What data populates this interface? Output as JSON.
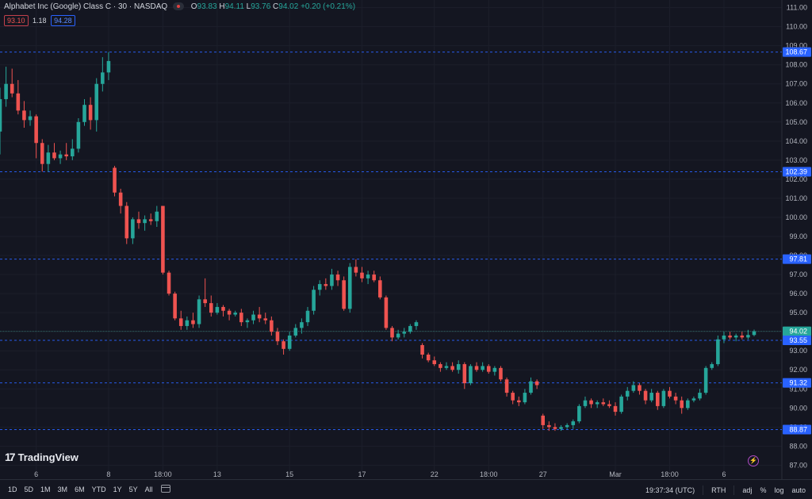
{
  "header": {
    "symbol_title": "Alphabet Inc (Google) Class C · 30 · NASDAQ",
    "ohlc": {
      "o_label": "O",
      "o_value": "93.83",
      "h_label": "H",
      "h_value": "94.11",
      "l_label": "L",
      "l_value": "93.76",
      "c_label": "C",
      "c_value": "94.02",
      "change": "+0.20 (+0.21%)"
    },
    "bid": "93.10",
    "spread": "1.18",
    "ask": "94.28"
  },
  "branding": {
    "logo_text": "TradingView",
    "logo_mark": "17"
  },
  "bottom_bar": {
    "periods": [
      "1D",
      "5D",
      "1M",
      "3M",
      "6M",
      "YTD",
      "1Y",
      "5Y",
      "All"
    ],
    "clock": "19:37:34 (UTC)",
    "session": "RTH",
    "adj": "adj",
    "percent": "%",
    "log": "log",
    "auto": "auto"
  },
  "colors": {
    "up": "#26a69a",
    "down": "#ef5350",
    "background": "#141621",
    "line_blue": "#2962ff",
    "price_label_green": "#26a69a"
  },
  "chart_data": {
    "type": "candlestick",
    "title": "Alphabet Inc (Google) Class C · 30 · NASDAQ",
    "ylim": [
      86.6,
      111.4
    ],
    "y_ticks": [
      "87.00",
      "88.00",
      "89.00",
      "90.00",
      "91.00",
      "92.00",
      "93.00",
      "94.00",
      "95.00",
      "96.00",
      "97.00",
      "98.00",
      "99.00",
      "100.00",
      "101.00",
      "102.00",
      "103.00",
      "104.00",
      "105.00",
      "106.00",
      "107.00",
      "108.00",
      "109.00",
      "110.00",
      "111.00"
    ],
    "x_ticks": [
      {
        "label": "6",
        "index": 6
      },
      {
        "label": "8",
        "index": 18
      },
      {
        "label": "18:00",
        "index": 27
      },
      {
        "label": "13",
        "index": 36
      },
      {
        "label": "15",
        "index": 48
      },
      {
        "label": "17",
        "index": 60
      },
      {
        "label": "22",
        "index": 72
      },
      {
        "label": "18:00",
        "index": 81
      },
      {
        "label": "27",
        "index": 90
      },
      {
        "label": "Mar",
        "index": 102
      },
      {
        "label": "18:00",
        "index": 111
      },
      {
        "label": "6",
        "index": 120
      }
    ],
    "horizontal_lines": [
      {
        "price": 108.67,
        "label": "108.67",
        "style": "dashed"
      },
      {
        "price": 102.39,
        "label": "102.39",
        "style": "dashed"
      },
      {
        "price": 97.81,
        "label": "97.81",
        "style": "dashed"
      },
      {
        "price": 94.02,
        "label": "94.02",
        "style": "solid-current"
      },
      {
        "price": 93.55,
        "label": "93.55",
        "style": "dashed"
      },
      {
        "price": 91.32,
        "label": "91.32",
        "style": "dashed"
      },
      {
        "price": 88.87,
        "label": "88.87",
        "style": "dashed"
      }
    ],
    "series": [
      {
        "o": 104.5,
        "h": 106.8,
        "l": 103.3,
        "c": 106.2
      },
      {
        "o": 106.2,
        "h": 107.9,
        "l": 105.8,
        "c": 107.0
      },
      {
        "o": 107.0,
        "h": 107.8,
        "l": 106.3,
        "c": 106.5
      },
      {
        "o": 106.5,
        "h": 107.2,
        "l": 105.4,
        "c": 105.6
      },
      {
        "o": 105.6,
        "h": 106.1,
        "l": 104.7,
        "c": 105.1
      },
      {
        "o": 105.1,
        "h": 105.6,
        "l": 104.8,
        "c": 105.3
      },
      {
        "o": 105.3,
        "h": 105.4,
        "l": 103.1,
        "c": 103.9
      },
      {
        "o": 103.9,
        "h": 104.1,
        "l": 102.4,
        "c": 102.8
      },
      {
        "o": 102.8,
        "h": 103.8,
        "l": 102.4,
        "c": 103.4
      },
      {
        "o": 103.4,
        "h": 103.9,
        "l": 103.0,
        "c": 103.1
      },
      {
        "o": 103.1,
        "h": 103.5,
        "l": 102.8,
        "c": 103.3
      },
      {
        "o": 103.3,
        "h": 103.9,
        "l": 103.0,
        "c": 103.2
      },
      {
        "o": 103.2,
        "h": 104.1,
        "l": 103.0,
        "c": 103.6
      },
      {
        "o": 103.6,
        "h": 105.2,
        "l": 103.4,
        "c": 105.0
      },
      {
        "o": 105.0,
        "h": 106.2,
        "l": 104.8,
        "c": 105.9
      },
      {
        "o": 105.9,
        "h": 106.3,
        "l": 104.6,
        "c": 105.1
      },
      {
        "o": 105.1,
        "h": 107.3,
        "l": 104.5,
        "c": 107.0
      },
      {
        "o": 107.0,
        "h": 108.4,
        "l": 106.6,
        "c": 107.6
      },
      {
        "o": 107.6,
        "h": 108.67,
        "l": 107.2,
        "c": 108.2
      },
      {
        "o": 102.6,
        "h": 102.7,
        "l": 101.1,
        "c": 101.3
      },
      {
        "o": 101.3,
        "h": 101.5,
        "l": 100.2,
        "c": 100.6
      },
      {
        "o": 100.6,
        "h": 100.8,
        "l": 98.6,
        "c": 98.9
      },
      {
        "o": 98.9,
        "h": 100.0,
        "l": 98.6,
        "c": 99.9
      },
      {
        "o": 99.9,
        "h": 100.3,
        "l": 99.4,
        "c": 99.7
      },
      {
        "o": 99.7,
        "h": 100.1,
        "l": 99.3,
        "c": 99.9
      },
      {
        "o": 99.9,
        "h": 100.2,
        "l": 99.6,
        "c": 99.8
      },
      {
        "o": 99.8,
        "h": 100.6,
        "l": 99.5,
        "c": 100.3
      },
      {
        "o": 100.6,
        "h": 100.6,
        "l": 97.0,
        "c": 97.1
      },
      {
        "o": 97.1,
        "h": 97.2,
        "l": 95.9,
        "c": 96.0
      },
      {
        "o": 96.0,
        "h": 96.1,
        "l": 94.6,
        "c": 94.7
      },
      {
        "o": 94.7,
        "h": 95.1,
        "l": 94.1,
        "c": 94.3
      },
      {
        "o": 94.3,
        "h": 94.8,
        "l": 94.1,
        "c": 94.6
      },
      {
        "o": 94.6,
        "h": 95.0,
        "l": 94.2,
        "c": 94.4
      },
      {
        "o": 94.4,
        "h": 95.9,
        "l": 94.2,
        "c": 95.7
      },
      {
        "o": 95.7,
        "h": 96.8,
        "l": 95.3,
        "c": 95.5
      },
      {
        "o": 95.5,
        "h": 95.9,
        "l": 94.8,
        "c": 95.0
      },
      {
        "o": 95.0,
        "h": 95.5,
        "l": 94.9,
        "c": 95.3
      },
      {
        "o": 95.3,
        "h": 95.4,
        "l": 94.8,
        "c": 95.1
      },
      {
        "o": 95.1,
        "h": 95.2,
        "l": 94.6,
        "c": 94.9
      },
      {
        "o": 94.9,
        "h": 95.1,
        "l": 94.8,
        "c": 95.0
      },
      {
        "o": 95.0,
        "h": 95.2,
        "l": 94.3,
        "c": 94.5
      },
      {
        "o": 94.5,
        "h": 94.7,
        "l": 94.2,
        "c": 94.6
      },
      {
        "o": 94.6,
        "h": 95.1,
        "l": 94.4,
        "c": 94.9
      },
      {
        "o": 94.9,
        "h": 95.3,
        "l": 94.5,
        "c": 94.7
      },
      {
        "o": 94.7,
        "h": 95.0,
        "l": 94.4,
        "c": 94.6
      },
      {
        "o": 94.6,
        "h": 94.8,
        "l": 93.8,
        "c": 94.0
      },
      {
        "o": 94.0,
        "h": 94.2,
        "l": 93.3,
        "c": 93.5
      },
      {
        "o": 93.5,
        "h": 93.6,
        "l": 92.8,
        "c": 93.1
      },
      {
        "o": 93.1,
        "h": 94.0,
        "l": 93.0,
        "c": 93.8
      },
      {
        "o": 93.8,
        "h": 94.4,
        "l": 93.7,
        "c": 94.2
      },
      {
        "o": 94.2,
        "h": 94.7,
        "l": 93.9,
        "c": 94.5
      },
      {
        "o": 94.5,
        "h": 95.3,
        "l": 94.3,
        "c": 95.1
      },
      {
        "o": 95.1,
        "h": 96.4,
        "l": 94.9,
        "c": 96.2
      },
      {
        "o": 96.2,
        "h": 96.7,
        "l": 95.9,
        "c": 96.5
      },
      {
        "o": 96.5,
        "h": 96.8,
        "l": 96.2,
        "c": 96.4
      },
      {
        "o": 96.4,
        "h": 97.3,
        "l": 96.2,
        "c": 97.0
      },
      {
        "o": 97.0,
        "h": 97.2,
        "l": 96.4,
        "c": 96.7
      },
      {
        "o": 96.7,
        "h": 96.9,
        "l": 95.1,
        "c": 95.2
      },
      {
        "o": 95.2,
        "h": 97.6,
        "l": 95.0,
        "c": 97.4
      },
      {
        "o": 97.4,
        "h": 97.8,
        "l": 96.9,
        "c": 97.1
      },
      {
        "o": 97.1,
        "h": 97.4,
        "l": 96.6,
        "c": 96.8
      },
      {
        "o": 96.8,
        "h": 97.2,
        "l": 96.5,
        "c": 97.0
      },
      {
        "o": 97.0,
        "h": 97.2,
        "l": 96.6,
        "c": 96.7
      },
      {
        "o": 96.7,
        "h": 96.9,
        "l": 95.7,
        "c": 95.8
      },
      {
        "o": 95.8,
        "h": 95.9,
        "l": 94.1,
        "c": 94.2
      },
      {
        "o": 94.2,
        "h": 94.3,
        "l": 93.5,
        "c": 93.7
      },
      {
        "o": 93.7,
        "h": 94.1,
        "l": 93.6,
        "c": 93.9
      },
      {
        "o": 93.9,
        "h": 94.2,
        "l": 93.7,
        "c": 94.0
      },
      {
        "o": 94.0,
        "h": 94.4,
        "l": 93.9,
        "c": 94.3
      },
      {
        "o": 94.3,
        "h": 94.6,
        "l": 94.1,
        "c": 94.5
      },
      {
        "o": 93.3,
        "h": 93.4,
        "l": 92.6,
        "c": 92.8
      },
      {
        "o": 92.8,
        "h": 92.9,
        "l": 92.4,
        "c": 92.5
      },
      {
        "o": 92.5,
        "h": 92.7,
        "l": 92.2,
        "c": 92.3
      },
      {
        "o": 92.3,
        "h": 92.4,
        "l": 91.9,
        "c": 92.1
      },
      {
        "o": 92.1,
        "h": 92.4,
        "l": 92.0,
        "c": 92.2
      },
      {
        "o": 92.2,
        "h": 92.4,
        "l": 91.9,
        "c": 92.0
      },
      {
        "o": 92.0,
        "h": 92.5,
        "l": 91.8,
        "c": 92.3
      },
      {
        "o": 92.3,
        "h": 92.4,
        "l": 91.0,
        "c": 91.3
      },
      {
        "o": 91.3,
        "h": 92.3,
        "l": 91.2,
        "c": 92.2
      },
      {
        "o": 92.2,
        "h": 92.4,
        "l": 91.9,
        "c": 92.0
      },
      {
        "o": 92.0,
        "h": 92.4,
        "l": 91.9,
        "c": 92.2
      },
      {
        "o": 92.2,
        "h": 92.3,
        "l": 91.8,
        "c": 91.9
      },
      {
        "o": 91.9,
        "h": 92.2,
        "l": 91.7,
        "c": 92.1
      },
      {
        "o": 92.1,
        "h": 92.2,
        "l": 91.4,
        "c": 91.5
      },
      {
        "o": 91.5,
        "h": 91.6,
        "l": 90.6,
        "c": 90.8
      },
      {
        "o": 90.8,
        "h": 90.9,
        "l": 90.2,
        "c": 90.4
      },
      {
        "o": 90.4,
        "h": 90.6,
        "l": 90.1,
        "c": 90.3
      },
      {
        "o": 90.3,
        "h": 91.0,
        "l": 90.2,
        "c": 90.8
      },
      {
        "o": 90.8,
        "h": 91.6,
        "l": 90.7,
        "c": 91.4
      },
      {
        "o": 91.4,
        "h": 91.5,
        "l": 91.0,
        "c": 91.2
      },
      {
        "o": 89.6,
        "h": 89.7,
        "l": 88.9,
        "c": 89.1
      },
      {
        "o": 89.1,
        "h": 89.3,
        "l": 88.8,
        "c": 89.0
      },
      {
        "o": 89.0,
        "h": 89.2,
        "l": 88.8,
        "c": 88.9
      },
      {
        "o": 88.9,
        "h": 89.1,
        "l": 88.8,
        "c": 89.0
      },
      {
        "o": 89.0,
        "h": 89.2,
        "l": 88.9,
        "c": 89.1
      },
      {
        "o": 89.1,
        "h": 89.4,
        "l": 88.9,
        "c": 89.3
      },
      {
        "o": 89.3,
        "h": 90.2,
        "l": 89.2,
        "c": 90.1
      },
      {
        "o": 90.1,
        "h": 90.6,
        "l": 90.0,
        "c": 90.4
      },
      {
        "o": 90.4,
        "h": 90.5,
        "l": 90.0,
        "c": 90.2
      },
      {
        "o": 90.2,
        "h": 90.4,
        "l": 90.0,
        "c": 90.3
      },
      {
        "o": 90.3,
        "h": 90.5,
        "l": 90.1,
        "c": 90.2
      },
      {
        "o": 90.2,
        "h": 90.4,
        "l": 90.0,
        "c": 90.1
      },
      {
        "o": 90.1,
        "h": 90.3,
        "l": 89.6,
        "c": 89.8
      },
      {
        "o": 89.8,
        "h": 90.7,
        "l": 89.7,
        "c": 90.6
      },
      {
        "o": 90.6,
        "h": 91.1,
        "l": 90.4,
        "c": 90.9
      },
      {
        "o": 90.9,
        "h": 91.4,
        "l": 90.8,
        "c": 91.2
      },
      {
        "o": 91.2,
        "h": 91.3,
        "l": 90.7,
        "c": 90.9
      },
      {
        "o": 90.9,
        "h": 91.0,
        "l": 90.2,
        "c": 90.4
      },
      {
        "o": 90.4,
        "h": 91.0,
        "l": 90.3,
        "c": 90.8
      },
      {
        "o": 90.8,
        "h": 90.9,
        "l": 89.9,
        "c": 90.1
      },
      {
        "o": 90.1,
        "h": 91.0,
        "l": 90.0,
        "c": 90.9
      },
      {
        "o": 90.9,
        "h": 91.1,
        "l": 90.5,
        "c": 90.6
      },
      {
        "o": 90.6,
        "h": 90.8,
        "l": 90.2,
        "c": 90.4
      },
      {
        "o": 90.4,
        "h": 90.6,
        "l": 89.7,
        "c": 90.0
      },
      {
        "o": 90.0,
        "h": 90.5,
        "l": 89.9,
        "c": 90.4
      },
      {
        "o": 90.4,
        "h": 90.6,
        "l": 90.3,
        "c": 90.5
      },
      {
        "o": 90.5,
        "h": 91.0,
        "l": 90.4,
        "c": 90.8
      },
      {
        "o": 90.8,
        "h": 92.2,
        "l": 90.7,
        "c": 92.1
      },
      {
        "o": 92.1,
        "h": 92.4,
        "l": 92.0,
        "c": 92.3
      },
      {
        "o": 92.3,
        "h": 93.8,
        "l": 92.2,
        "c": 93.6
      },
      {
        "o": 93.6,
        "h": 94.0,
        "l": 93.4,
        "c": 93.8
      },
      {
        "o": 93.8,
        "h": 94.0,
        "l": 93.6,
        "c": 93.7
      },
      {
        "o": 93.7,
        "h": 93.9,
        "l": 93.5,
        "c": 93.8
      },
      {
        "o": 93.8,
        "h": 94.0,
        "l": 93.6,
        "c": 93.7
      },
      {
        "o": 93.7,
        "h": 94.1,
        "l": 93.6,
        "c": 93.83
      },
      {
        "o": 93.83,
        "h": 94.11,
        "l": 93.76,
        "c": 94.02
      }
    ]
  }
}
